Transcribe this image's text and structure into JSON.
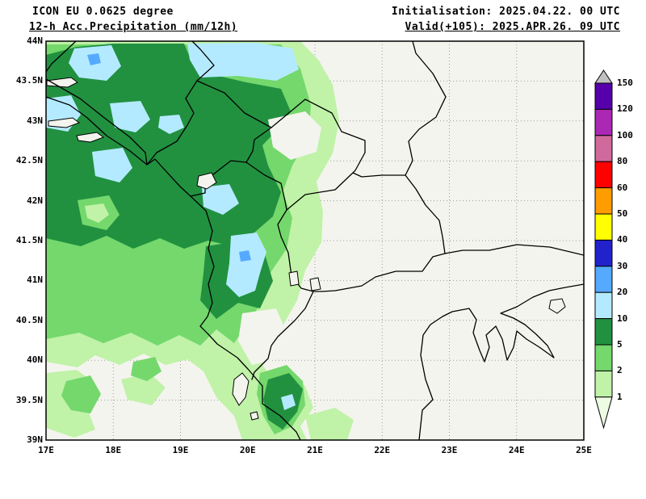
{
  "header": {
    "model_line": "ICON EU 0.0625 degree",
    "product_line": "12-h Acc.Precipitation (mm/12h)",
    "init_line": "Initialisation: 2025.04.22. 00 UTC",
    "valid_line": "Valid(+105): 2025.APR.26. 09 UTC"
  },
  "map": {
    "lat_ticks": [
      "44N",
      "43.5N",
      "43N",
      "42.5N",
      "42N",
      "41.5N",
      "41N",
      "40.5N",
      "40N",
      "39.5N",
      "39N"
    ],
    "lon_ticks": [
      "17E",
      "18E",
      "19E",
      "20E",
      "21E",
      "22E",
      "23E",
      "24E",
      "25E"
    ],
    "lat_range_deg": [
      39,
      44
    ],
    "lon_range_deg": [
      17,
      25
    ],
    "background_color": "#f4f4ee",
    "grid_color": "#9a9a9a",
    "frame_color": "#000000"
  },
  "colorbar": {
    "levels_top_to_bottom": [
      "150",
      "120",
      "100",
      "80",
      "60",
      "50",
      "40",
      "30",
      "20",
      "10",
      "5",
      "2",
      "1"
    ],
    "block_colors_top_to_bottom": [
      "#5500aa",
      "#aa28b4",
      "#d06a9c",
      "#ff0000",
      "#ff9c00",
      "#ffff00",
      "#2222cc",
      "#55aaff",
      "#b4eaff",
      "#219140",
      "#74d86c",
      "#c0f2a8"
    ],
    "over_color": "#c0c0c0",
    "under_color": "#edfbe2"
  },
  "precip_map_colors": {
    "level_1_2": "#c0f2a8",
    "level_2_5": "#74d86c",
    "level_5_10": "#219140",
    "level_10_20": "#b4eaff",
    "level_20_30": "#55aaff"
  }
}
